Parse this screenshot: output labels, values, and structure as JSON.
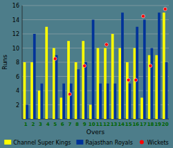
{
  "chart_data": {
    "type": "bar",
    "categories": [
      "1",
      "2",
      "3",
      "4",
      "5",
      "6",
      "7",
      "8",
      "9",
      "10",
      "11",
      "12",
      "13",
      "14",
      "15",
      "16",
      "17",
      "18",
      "19",
      "20"
    ],
    "series": [
      {
        "name": "Channel Super Kings",
        "color": "#FFFF00",
        "values": [
          8,
          8,
          4,
          13,
          10,
          3,
          11,
          8,
          11,
          2,
          10,
          10,
          12,
          10,
          8,
          10,
          3,
          9,
          9,
          15
        ]
      },
      {
        "name": "Rajasthan Royals",
        "color": "#003399",
        "values": [
          2,
          12,
          5,
          0,
          9,
          5,
          5,
          7,
          8,
          14,
          5,
          5,
          5,
          15,
          5,
          13,
          14,
          10,
          15,
          8
        ]
      },
      {
        "name": "Wickets",
        "type": "scatter",
        "marker": "circle",
        "color": "red",
        "values": [
          null,
          null,
          null,
          null,
          8.5,
          null,
          3.5,
          null,
          7.5,
          null,
          null,
          10.5,
          null,
          null,
          5.5,
          5.5,
          14.5,
          7.5,
          null,
          15.5
        ]
      }
    ],
    "xlabel": "Overs",
    "ylabel": "Runs",
    "ylim": [
      0,
      16
    ],
    "yticks": [
      2,
      4,
      6,
      8,
      10,
      12,
      14,
      16
    ],
    "grid": true,
    "legend": "bottom"
  }
}
